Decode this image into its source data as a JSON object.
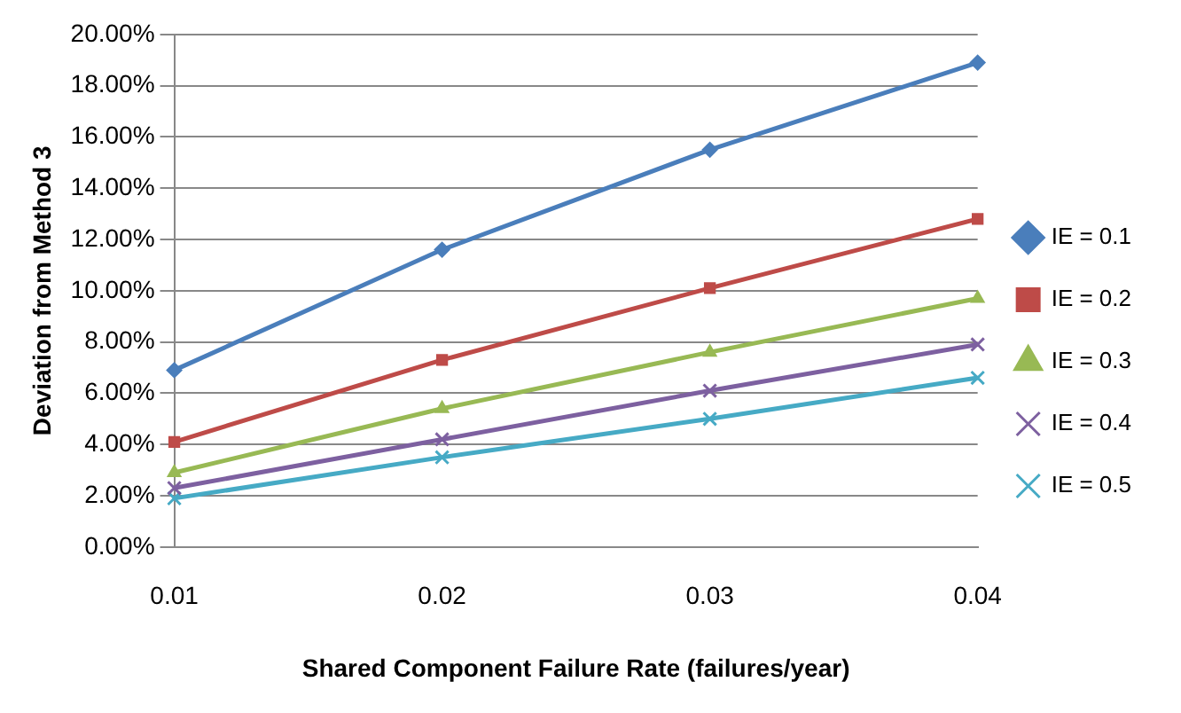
{
  "chart_data": {
    "type": "line",
    "xlabel": "Shared Component Failure Rate (failures/year)",
    "ylabel": "Deviation from Method 3",
    "categories": [
      "0.01",
      "0.02",
      "0.03",
      "0.04"
    ],
    "series": [
      {
        "name": "IE = 0.1",
        "color": "#4a7ebb",
        "marker": "diamond",
        "values": [
          6.9,
          11.6,
          15.5,
          18.9
        ]
      },
      {
        "name": "IE = 0.2",
        "color": "#be4b48",
        "marker": "square",
        "values": [
          4.1,
          7.3,
          10.1,
          12.8
        ]
      },
      {
        "name": "IE = 0.3",
        "color": "#98b954",
        "marker": "triangle",
        "values": [
          2.9,
          5.4,
          7.6,
          9.7
        ]
      },
      {
        "name": "IE = 0.4",
        "color": "#7d60a0",
        "marker": "cross",
        "values": [
          2.3,
          4.2,
          6.1,
          7.9
        ]
      },
      {
        "name": "IE = 0.5",
        "color": "#46aac5",
        "marker": "cross",
        "values": [
          1.9,
          3.5,
          5.0,
          6.6
        ]
      }
    ],
    "ylim": [
      0,
      20
    ],
    "yticks": [
      {
        "value": 0,
        "label": "0.00%"
      },
      {
        "value": 2,
        "label": "2.00%"
      },
      {
        "value": 4,
        "label": "4.00%"
      },
      {
        "value": 6,
        "label": "6.00%"
      },
      {
        "value": 8,
        "label": "8.00%"
      },
      {
        "value": 10,
        "label": "10.00%"
      },
      {
        "value": 12,
        "label": "12.00%"
      },
      {
        "value": 14,
        "label": "14.00%"
      },
      {
        "value": 16,
        "label": "16.00%"
      },
      {
        "value": 18,
        "label": "18.00%"
      },
      {
        "value": 20,
        "label": "20.00%"
      }
    ],
    "grid": "y",
    "legend": "right"
  }
}
